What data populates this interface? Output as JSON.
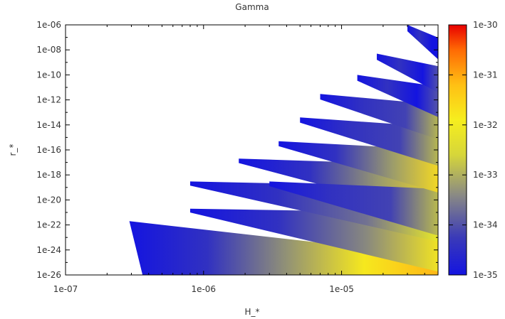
{
  "chart_data": {
    "type": "heatmap",
    "title": "Gamma",
    "xlabel": "H_*",
    "ylabel": "r_*",
    "x_scale": "log",
    "y_scale": "log",
    "color_scale": "log",
    "xlim": [
      1e-07,
      5e-05
    ],
    "ylim": [
      1e-26,
      1e-06
    ],
    "clim": [
      1e-35,
      1e-30
    ],
    "x_ticks": [
      "1e-07",
      "1e-06",
      "1e-05"
    ],
    "y_ticks": [
      "1e-06",
      "1e-08",
      "1e-10",
      "1e-12",
      "1e-14",
      "1e-16",
      "1e-18",
      "1e-20",
      "1e-22",
      "1e-24",
      "1e-26"
    ],
    "colorbar_ticks": [
      "1e-30",
      "1e-31",
      "1e-32",
      "1e-33",
      "1e-34",
      "1e-35"
    ],
    "colormap": [
      "#1414e0",
      "#3a3ab8",
      "#7a7a8c",
      "#b9b94f",
      "#f2f21e",
      "#ffd21e",
      "#ff9d0f",
      "#ff5a00",
      "#e60000"
    ],
    "grid": false,
    "legend": "colorbar-right",
    "regions": [
      {
        "band": 1,
        "tip_H": 2.9e-07,
        "r_low": 1e-26,
        "r_high_at_tip": 2e-22,
        "peak": 3e-32
      },
      {
        "band": 2,
        "tip_H": 8e-07,
        "r_at_tip": 2e-21,
        "peak": 5e-33
      },
      {
        "band": 3,
        "tip_H": 8e-07,
        "r_at_tip": 3e-19,
        "peak": 3e-33
      },
      {
        "band": 4,
        "tip_H": 1.8e-06,
        "r_at_tip": 2e-17,
        "peak": 8e-33
      },
      {
        "band": 5,
        "tip_H": 3e-06,
        "r_at_tip": 3e-19,
        "peak": 1e-33
      },
      {
        "band": 6,
        "tip_H": 3.5e-06,
        "r_at_tip": 5e-16,
        "peak": 8e-33
      },
      {
        "band": 7,
        "tip_H": 5e-06,
        "r_at_tip": 4e-14,
        "peak": 1e-33
      },
      {
        "band": 8,
        "tip_H": 7e-06,
        "r_at_tip": 3e-12,
        "peak": 1e-33
      },
      {
        "band": 9,
        "tip_H": 1.3e-05,
        "r_at_tip": 1e-10,
        "peak": 1e-34
      },
      {
        "band": 10,
        "tip_H": 1.8e-05,
        "r_at_tip": 5e-09,
        "peak": 1e-34
      },
      {
        "band": 11,
        "tip_H": 3e-05,
        "r_at_tip": 1e-06,
        "peak": 1e-35
      }
    ]
  }
}
